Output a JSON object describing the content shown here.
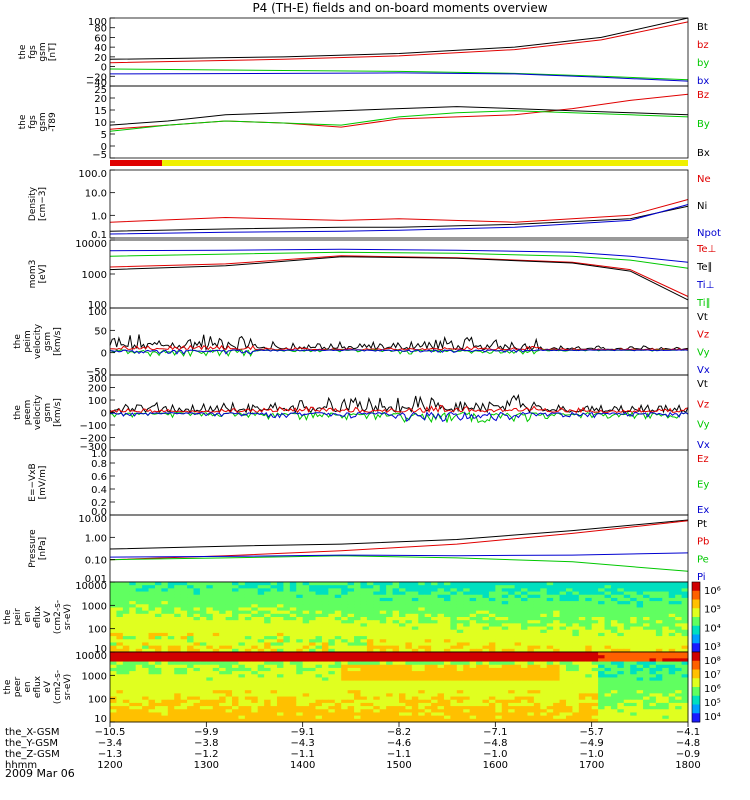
{
  "title": "P4 (TH-E) fields and on-board moments overview",
  "date_label": "2009 Mar 06",
  "colors": {
    "black": "#000000",
    "red": "#e00000",
    "green": "#00c800",
    "blue": "#0000d0",
    "yellow": "#f0f000"
  },
  "chart_data": [
    {
      "type": "line",
      "ylabel": [
        "the",
        "fgs",
        "gsm",
        "[nT]"
      ],
      "ylim": [
        -40,
        100
      ],
      "yticks": [
        "100",
        "80",
        "60",
        "40",
        "20",
        "0",
        "−20",
        "−40"
      ],
      "series": [
        {
          "name": "Bt",
          "color": "#000000",
          "x": [
            0,
            0.3,
            0.5,
            0.7,
            0.85,
            1
          ],
          "y": [
            15,
            20,
            27,
            40,
            60,
            100
          ]
        },
        {
          "name": "bz",
          "color": "#e00000",
          "x": [
            0,
            0.3,
            0.5,
            0.7,
            0.85,
            1
          ],
          "y": [
            8,
            15,
            22,
            35,
            55,
            92
          ]
        },
        {
          "name": "by",
          "color": "#00c800",
          "x": [
            0,
            0.3,
            0.5,
            0.7,
            0.85,
            1
          ],
          "y": [
            -5,
            -8,
            -10,
            -14,
            -20,
            -27
          ]
        },
        {
          "name": "bx",
          "color": "#0000d0",
          "x": [
            0,
            0.3,
            0.5,
            0.7,
            0.85,
            1
          ],
          "y": [
            -15,
            -14,
            -13,
            -15,
            -22,
            -30
          ]
        }
      ]
    },
    {
      "type": "line",
      "ylabel": [
        "the",
        "fgs",
        "gsm",
        "-T89"
      ],
      "ylim": [
        -10,
        25
      ],
      "yticks": [
        "25",
        "20",
        "15",
        "10",
        "5",
        "0",
        "−5"
      ],
      "series": [
        {
          "name": "Bz",
          "color": "#e00000",
          "x": [
            0,
            0.1,
            0.2,
            0.3,
            0.4,
            0.5,
            0.6,
            0.7,
            0.8,
            0.9,
            1
          ],
          "y": [
            4,
            6,
            8,
            7,
            5,
            9,
            10,
            11,
            14,
            18,
            21
          ]
        },
        {
          "name": "By",
          "color": "#00c800",
          "x": [
            0,
            0.1,
            0.2,
            0.3,
            0.4,
            0.5,
            0.6,
            0.7,
            0.8,
            0.9,
            1
          ],
          "y": [
            3,
            6,
            8,
            7,
            6,
            10,
            12,
            13,
            12,
            11,
            10
          ]
        },
        {
          "name": "Bx",
          "color": "#000000",
          "x": [
            0,
            0.1,
            0.2,
            0.3,
            0.4,
            0.5,
            0.6,
            0.7,
            0.8,
            0.9,
            1
          ],
          "y": [
            6,
            8,
            11,
            12,
            13,
            14,
            15,
            14,
            13,
            12,
            11
          ]
        }
      ]
    },
    {
      "type": "bar",
      "segments": [
        {
          "from": 0,
          "to": 0.09,
          "color": "#e00000"
        },
        {
          "from": 0.09,
          "to": 1,
          "color": "#f0f000"
        }
      ]
    },
    {
      "type": "line",
      "ylabel": [
        "Density",
        "[cm−3]"
      ],
      "log": true,
      "ylim": [
        0.1,
        100
      ],
      "yticks": [
        "100.0",
        "10.0",
        "1.0",
        "0.1"
      ],
      "series": [
        {
          "name": "Ne",
          "color": "#e00000",
          "x": [
            0,
            0.2,
            0.4,
            0.5,
            0.7,
            0.9,
            1
          ],
          "y": [
            0.5,
            0.8,
            0.6,
            0.7,
            0.5,
            1.0,
            5.0
          ]
        },
        {
          "name": "Ni",
          "color": "#000000",
          "x": [
            0,
            0.2,
            0.4,
            0.5,
            0.7,
            0.9,
            1
          ],
          "y": [
            0.2,
            0.25,
            0.3,
            0.3,
            0.4,
            0.7,
            2.5
          ]
        },
        {
          "name": "Npot",
          "color": "#0000d0",
          "x": [
            0,
            0.2,
            0.4,
            0.5,
            0.7,
            0.9,
            1
          ],
          "y": [
            0.15,
            0.18,
            0.2,
            0.22,
            0.3,
            0.6,
            3.0
          ]
        }
      ]
    },
    {
      "type": "line",
      "ylabel": [
        "mom3",
        "[eV]"
      ],
      "log": true,
      "ylim": [
        30,
        10000
      ],
      "yticks": [
        "10000",
        "1000",
        "100"
      ],
      "series": [
        {
          "name": "Te⊥",
          "color": "#e00000",
          "x": [
            0,
            0.2,
            0.4,
            0.6,
            0.8,
            0.9,
            1
          ],
          "y": [
            1000,
            1300,
            2600,
            2200,
            1500,
            800,
            80
          ]
        },
        {
          "name": "Te∥",
          "color": "#000000",
          "x": [
            0,
            0.2,
            0.4,
            0.6,
            0.8,
            0.9,
            1
          ],
          "y": [
            800,
            1100,
            2400,
            2100,
            1400,
            700,
            60
          ]
        },
        {
          "name": "Ti⊥",
          "color": "#0000d0",
          "x": [
            0,
            0.2,
            0.4,
            0.6,
            0.8,
            0.9,
            1
          ],
          "y": [
            4000,
            4200,
            4500,
            4200,
            3500,
            2500,
            1500
          ]
        },
        {
          "name": "Ti∥",
          "color": "#00c800",
          "x": [
            0,
            0.2,
            0.4,
            0.6,
            0.8,
            0.9,
            1
          ],
          "y": [
            2500,
            3000,
            3500,
            3200,
            2500,
            1800,
            900
          ]
        }
      ]
    },
    {
      "type": "line",
      "ylabel": [
        "the",
        "peim",
        "velocity",
        "gsm",
        "[km/s]"
      ],
      "ylim": [
        -60,
        100
      ],
      "yticks": [
        "100",
        "50",
        "0",
        "−50"
      ],
      "series": [
        {
          "name": "Vt",
          "color": "#000000",
          "noise": [
            40,
            20,
            30,
            10
          ]
        },
        {
          "name": "Vz",
          "color": "#e00000",
          "noise": [
            10,
            5,
            8,
            3
          ]
        },
        {
          "name": "Vy",
          "color": "#00c800",
          "noise": [
            -15,
            -5,
            -10,
            -3
          ]
        },
        {
          "name": "Vx",
          "color": "#0000d0",
          "noise": [
            -10,
            -3,
            -6,
            -2
          ]
        }
      ]
    },
    {
      "type": "line",
      "ylabel": [
        "the",
        "peem",
        "velocity",
        "gsm",
        "[km/s]"
      ],
      "ylim": [
        -300,
        300
      ],
      "yticks": [
        "300",
        "200",
        "100",
        "0",
        "−100",
        "−200",
        "−300"
      ],
      "series": [
        {
          "name": "Vt",
          "color": "#000000",
          "noise": [
            80,
            120,
            140,
            60
          ]
        },
        {
          "name": "Vz",
          "color": "#e00000",
          "noise": [
            30,
            50,
            60,
            40
          ]
        },
        {
          "name": "Vy",
          "color": "#00c800",
          "noise": [
            -40,
            -60,
            -80,
            -50
          ]
        },
        {
          "name": "Vx",
          "color": "#0000d0",
          "noise": [
            -30,
            -50,
            -70,
            -40
          ]
        }
      ]
    },
    {
      "type": "line",
      "ylabel": [
        "E=−VxB",
        "[mV/m]"
      ],
      "ylim": [
        0,
        1
      ],
      "yticks": [
        "1.0",
        "0.8",
        "0.6",
        "0.4",
        "0.2",
        "0.0"
      ],
      "series": [
        {
          "name": "Ez",
          "color": "#e00000",
          "x": [],
          "y": []
        },
        {
          "name": "Ey",
          "color": "#00c800",
          "x": [],
          "y": []
        },
        {
          "name": "Ex",
          "color": "#0000d0",
          "x": [],
          "y": []
        }
      ]
    },
    {
      "type": "line",
      "ylabel": [
        "Pressure",
        "[nPa]"
      ],
      "log": true,
      "ylim": [
        0.01,
        10
      ],
      "yticks": [
        "10.00",
        "1.00",
        "0.10",
        "0.01"
      ],
      "series": [
        {
          "name": "Pt",
          "color": "#000000",
          "x": [
            0,
            0.2,
            0.4,
            0.6,
            0.8,
            1
          ],
          "y": [
            0.3,
            0.4,
            0.5,
            0.8,
            2,
            6
          ]
        },
        {
          "name": "Pb",
          "color": "#e00000",
          "x": [
            0,
            0.2,
            0.4,
            0.6,
            0.8,
            1
          ],
          "y": [
            0.1,
            0.15,
            0.25,
            0.5,
            1.5,
            5.5
          ]
        },
        {
          "name": "Pe",
          "color": "#00c800",
          "x": [
            0,
            0.2,
            0.4,
            0.6,
            0.8,
            1
          ],
          "y": [
            0.1,
            0.12,
            0.15,
            0.12,
            0.08,
            0.03
          ]
        },
        {
          "name": "Pi",
          "color": "#0000d0",
          "x": [
            0,
            0.2,
            0.4,
            0.6,
            0.8,
            1
          ],
          "y": [
            0.13,
            0.14,
            0.16,
            0.15,
            0.16,
            0.2
          ]
        }
      ]
    },
    {
      "type": "heatmap",
      "ylabel": [
        "the",
        "peir",
        "en",
        "eflux",
        "eV",
        "(cm2-s-",
        "sr-eV)"
      ],
      "yticks": [
        "10000",
        "1000",
        "100",
        "10"
      ],
      "colorbar_ticks": [
        "10⁶",
        "10⁵",
        "10⁴",
        "10³"
      ]
    },
    {
      "type": "heatmap",
      "ylabel": [
        "the",
        "peer",
        "en",
        "eflux",
        "eV",
        "(cm2-s-",
        "sr-eV)"
      ],
      "yticks": [
        "10000",
        "1000",
        "100",
        "10"
      ],
      "colorbar_ticks": [
        "10⁸",
        "10⁷",
        "10⁶",
        "10⁵",
        "10⁴"
      ]
    }
  ],
  "xaxis": {
    "row_labels": [
      "the_X-GSM",
      "the_Y-GSM",
      "the_Z-GSM",
      "hhmm"
    ],
    "ticks": [
      {
        "x": -10.5,
        "y": -3.4,
        "z": -1.3,
        "time": "1200"
      },
      {
        "x": -9.9,
        "y": -3.8,
        "z": -1.2,
        "time": "1300"
      },
      {
        "x": -9.1,
        "y": -4.3,
        "z": -1.1,
        "time": "1400"
      },
      {
        "x": -8.2,
        "y": -4.6,
        "z": -1.1,
        "time": "1500"
      },
      {
        "x": -7.1,
        "y": -4.8,
        "z": -1.0,
        "time": "1600"
      },
      {
        "x": -5.7,
        "y": -4.9,
        "z": -1.0,
        "time": "1700"
      },
      {
        "x": -4.1,
        "y": -4.8,
        "z": -0.9,
        "time": "1800"
      }
    ]
  }
}
